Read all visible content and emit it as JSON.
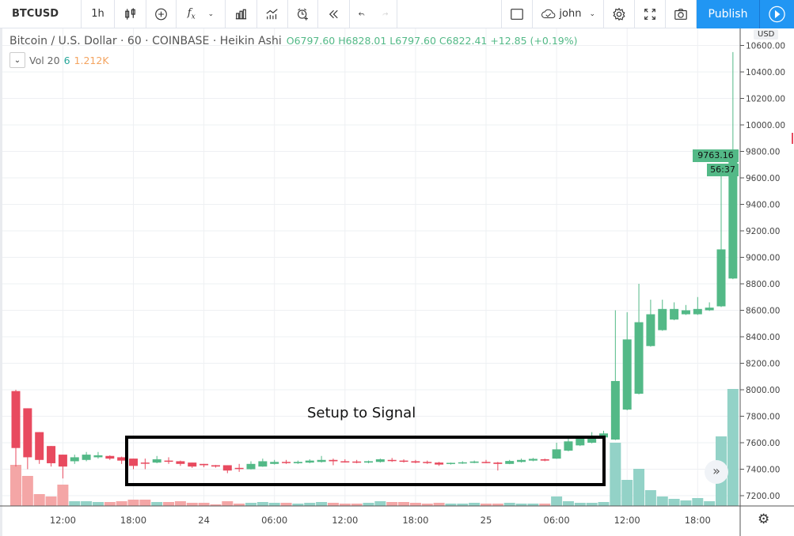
{
  "toolbar": {
    "symbol": "BTCUSD",
    "interval": "1h",
    "user": "john",
    "publish": "Publish",
    "icons": [
      "candles-icon",
      "plus-circle-icon",
      "fx-indicators-icon",
      "chevron-down-icon",
      "templates-icon",
      "compare-icon",
      "alert-icon",
      "replay-icon",
      "undo-icon",
      "redo-icon",
      "square-icon",
      "cloud-check-icon",
      "gear-icon",
      "fullscreen-icon",
      "camera-icon",
      "play-icon"
    ]
  },
  "legend": {
    "title": "Bitcoin / U.S. Dollar · 60 · COINBASE · Heikin Ashi",
    "ohlc": "O6797.60 H6828.01 L6797.60 C6822.41 +12.85 (+0.19%)",
    "vol_label": "Vol 20",
    "vol_a": "6",
    "vol_b": "1.212K"
  },
  "price_axis": {
    "currency": "USD",
    "last_price": "9763.16",
    "countdown": "56:37"
  },
  "annotation": "Setup to Signal",
  "colors": {
    "up": "#53b987",
    "down": "#e84a5f",
    "vol_up": "#93d2c7",
    "vol_down": "#f4a6a6",
    "accent": "#2196f3"
  },
  "chart_data": {
    "type": "candlestick",
    "price_ticks": [
      7200,
      7400,
      7600,
      7800,
      8000,
      8200,
      8400,
      8600,
      8800,
      9000,
      9200,
      9400,
      9600,
      9800,
      10000,
      10200,
      10400,
      10600
    ],
    "price_tick_labels": [
      "7200.00",
      "7400.00",
      "7600.00",
      "7800.00",
      "8000.00",
      "8200.00",
      "8400.00",
      "8600.00",
      "8800.00",
      "9000.00",
      "9200.00",
      "9400.00",
      "9600.00",
      "9800.00",
      "10000.00",
      "10200.00",
      "10400.00",
      "10600.00"
    ],
    "time_ticks": [
      {
        "i": 4,
        "label": "12:00"
      },
      {
        "i": 10,
        "label": "18:00"
      },
      {
        "i": 16,
        "label": "24"
      },
      {
        "i": 22,
        "label": "06:00"
      },
      {
        "i": 28,
        "label": "12:00"
      },
      {
        "i": 34,
        "label": "18:00"
      },
      {
        "i": 40,
        "label": "25"
      },
      {
        "i": 46,
        "label": "06:00"
      },
      {
        "i": 52,
        "label": "12:00"
      },
      {
        "i": 58,
        "label": "18:00"
      }
    ],
    "candles": [
      [
        7990,
        8000,
        7420,
        7560
      ],
      [
        7860,
        7860,
        7400,
        7490
      ],
      [
        7680,
        7680,
        7440,
        7470
      ],
      [
        7575,
        7575,
        7420,
        7445
      ],
      [
        7510,
        7510,
        7330,
        7420
      ],
      [
        7460,
        7510,
        7440,
        7490
      ],
      [
        7470,
        7530,
        7460,
        7510
      ],
      [
        7490,
        7530,
        7480,
        7505
      ],
      [
        7500,
        7505,
        7470,
        7480
      ],
      [
        7490,
        7495,
        7440,
        7465
      ],
      [
        7480,
        7480,
        7400,
        7425
      ],
      [
        7450,
        7480,
        7400,
        7445
      ],
      [
        7450,
        7500,
        7445,
        7475
      ],
      [
        7465,
        7490,
        7440,
        7460
      ],
      [
        7460,
        7465,
        7425,
        7440
      ],
      [
        7450,
        7450,
        7410,
        7420
      ],
      [
        7440,
        7440,
        7415,
        7430
      ],
      [
        7430,
        7432,
        7412,
        7420
      ],
      [
        7430,
        7430,
        7370,
        7390
      ],
      [
        7410,
        7440,
        7380,
        7405
      ],
      [
        7400,
        7460,
        7398,
        7440
      ],
      [
        7420,
        7480,
        7418,
        7460
      ],
      [
        7440,
        7470,
        7435,
        7455
      ],
      [
        7455,
        7470,
        7440,
        7450
      ],
      [
        7445,
        7465,
        7440,
        7455
      ],
      [
        7450,
        7475,
        7445,
        7465
      ],
      [
        7455,
        7500,
        7450,
        7470
      ],
      [
        7470,
        7480,
        7430,
        7460
      ],
      [
        7460,
        7475,
        7450,
        7455
      ],
      [
        7458,
        7470,
        7445,
        7450
      ],
      [
        7450,
        7465,
        7445,
        7460
      ],
      [
        7455,
        7480,
        7450,
        7475
      ],
      [
        7470,
        7485,
        7455,
        7465
      ],
      [
        7465,
        7475,
        7450,
        7458
      ],
      [
        7460,
        7470,
        7445,
        7450
      ],
      [
        7455,
        7465,
        7440,
        7448
      ],
      [
        7450,
        7455,
        7425,
        7435
      ],
      [
        7440,
        7450,
        7435,
        7448
      ],
      [
        7445,
        7460,
        7440,
        7452
      ],
      [
        7448,
        7465,
        7445,
        7458
      ],
      [
        7455,
        7470,
        7445,
        7450
      ],
      [
        7450,
        7455,
        7390,
        7440
      ],
      [
        7440,
        7470,
        7438,
        7462
      ],
      [
        7455,
        7480,
        7450,
        7470
      ],
      [
        7465,
        7485,
        7460,
        7478
      ],
      [
        7475,
        7480,
        7460,
        7465
      ],
      [
        7480,
        7600,
        7478,
        7550
      ],
      [
        7540,
        7640,
        7535,
        7610
      ],
      [
        7580,
        7650,
        7575,
        7630
      ],
      [
        7600,
        7680,
        7595,
        7650
      ],
      [
        7640,
        7690,
        7630,
        7670
      ],
      [
        7624,
        8600,
        7620,
        8066
      ],
      [
        7850,
        8585,
        7845,
        8380
      ],
      [
        7970,
        8800,
        7965,
        8510
      ],
      [
        8330,
        8680,
        8325,
        8570
      ],
      [
        8450,
        8680,
        8445,
        8610
      ],
      [
        8530,
        8660,
        8525,
        8610
      ],
      [
        8570,
        8640,
        8565,
        8600
      ],
      [
        8570,
        8700,
        8565,
        8610
      ],
      [
        8600,
        8660,
        8595,
        8620
      ],
      [
        8630,
        9700,
        8625,
        9060
      ],
      [
        8840,
        10550,
        8835,
        9763.16
      ]
    ],
    "volume_rel": [
      52,
      38,
      15,
      12,
      27,
      6,
      6,
      5,
      5,
      6,
      8,
      8,
      5,
      5,
      6,
      4,
      4,
      2,
      6,
      3,
      4,
      5,
      4,
      4,
      3,
      4,
      5,
      4,
      3,
      3,
      4,
      6,
      5,
      5,
      4,
      3,
      4,
      3,
      3,
      4,
      3,
      3,
      4,
      3,
      3,
      3,
      12,
      6,
      4,
      4,
      5,
      80,
      33,
      47,
      20,
      12,
      9,
      7,
      10,
      6,
      88,
      148
    ]
  }
}
